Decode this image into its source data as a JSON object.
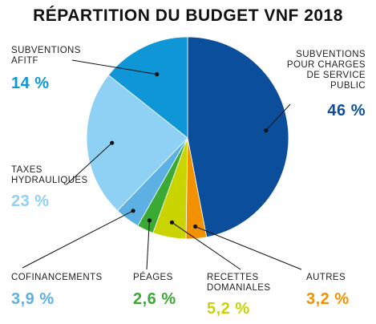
{
  "chart_data": {
    "type": "pie",
    "title": "RÉPARTITION DU BUDGET VNF 2018",
    "unit": "%",
    "slices": [
      {
        "label": "SUBVENTIONS POUR CHARGES DE SERVICE PUBLIC",
        "value_text": "46 %",
        "value": 46,
        "color": "#0b4f9c"
      },
      {
        "label": "AUTRES",
        "value_text": "3,2 %",
        "value": 3.2,
        "color": "#f39200"
      },
      {
        "label": "RECETTES DOMANIALES",
        "value_text": "5,2 %",
        "value": 5.2,
        "color": "#c9d400"
      },
      {
        "label": "PÉAGES",
        "value_text": "2,6 %",
        "value": 2.6,
        "color": "#3aaa35"
      },
      {
        "label": "COFINANCEMENTS",
        "value_text": "3,9 %",
        "value": 3.9,
        "color": "#5bb1e4"
      },
      {
        "label": "TAXES HYDRAULIQUES",
        "value_text": "23 %",
        "value": 23,
        "color": "#8fd0f5"
      },
      {
        "label": "SUBVENTIONS AFITF",
        "value_text": "14 %",
        "value": 14,
        "color": "#0f96d6"
      }
    ]
  }
}
